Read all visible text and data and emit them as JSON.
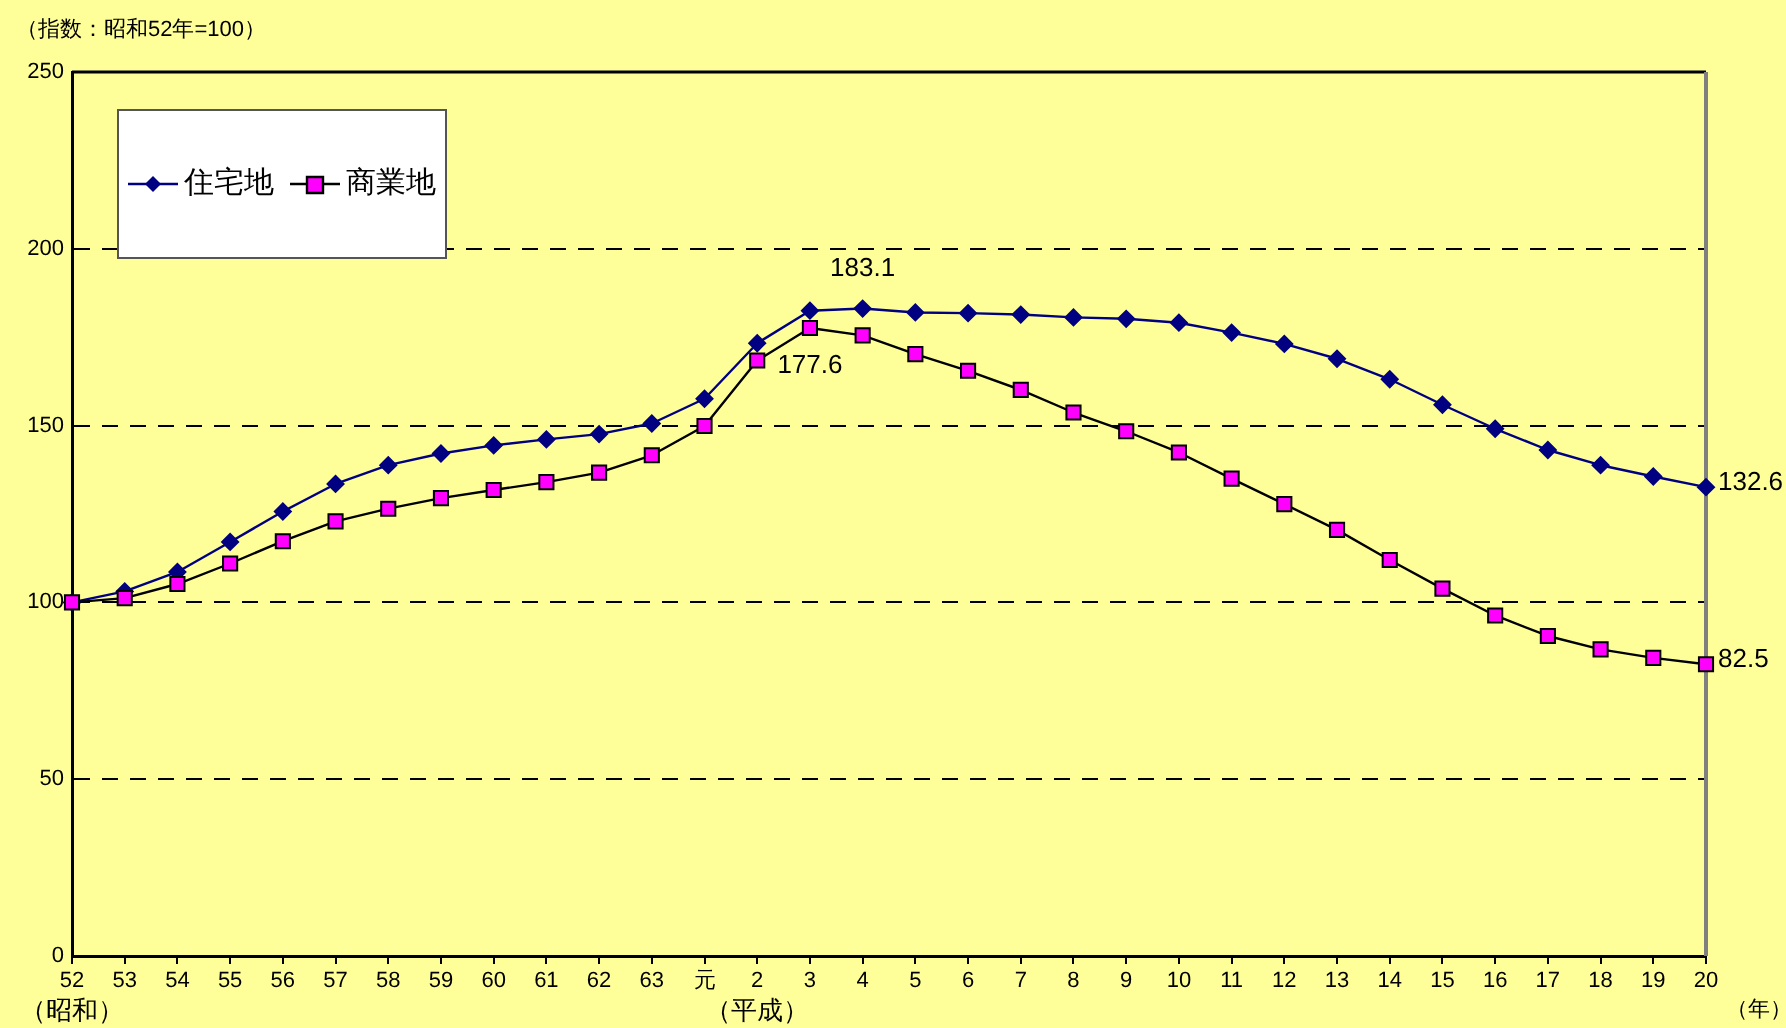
{
  "chart_data": {
    "type": "line",
    "ylabel": "（指数：昭和52年=100）",
    "xlabel": "（年）",
    "categories": [
      "52",
      "53",
      "54",
      "55",
      "56",
      "57",
      "58",
      "59",
      "60",
      "61",
      "62",
      "63",
      "元",
      "2",
      "3",
      "4",
      "5",
      "6",
      "7",
      "8",
      "9",
      "10",
      "11",
      "12",
      "13",
      "14",
      "15",
      "16",
      "17",
      "18",
      "19",
      "20"
    ],
    "series": [
      {
        "name": "住宅地",
        "color": "#000080",
        "marker": "diamond",
        "values": [
          100,
          103.1,
          108.6,
          117.1,
          125.7,
          133.5,
          138.8,
          142.1,
          144.4,
          146.1,
          147.6,
          150.6,
          157.6,
          173.3,
          182.5,
          183.1,
          182.0,
          181.8,
          181.4,
          180.6,
          180.2,
          179.1,
          176.3,
          173.1,
          168.9,
          163.1,
          155.9,
          149.1,
          143.1,
          138.8,
          135.6,
          132.6
        ],
        "value_labels": [
          null,
          null,
          null,
          null,
          null,
          null,
          null,
          null,
          null,
          null,
          null,
          null,
          null,
          null,
          null,
          "183.1",
          null,
          null,
          null,
          null,
          null,
          null,
          null,
          null,
          null,
          null,
          null,
          null,
          null,
          null,
          null,
          "132.6"
        ]
      },
      {
        "name": "商業地",
        "color": "#ff00ff",
        "marker": "square",
        "values": [
          100,
          101.2,
          105.2,
          111.0,
          117.3,
          122.9,
          126.5,
          129.5,
          131.8,
          134.0,
          136.7,
          141.6,
          149.9,
          168.4,
          177.6,
          175.5,
          170.2,
          165.5,
          160.1,
          153.7,
          148.4,
          142.4,
          135.0,
          127.8,
          120.5,
          112.0,
          103.9,
          96.3,
          90.5,
          86.7,
          84.3,
          82.5
        ],
        "value_labels": [
          null,
          null,
          null,
          null,
          null,
          null,
          null,
          null,
          null,
          null,
          null,
          null,
          null,
          null,
          "177.6",
          null,
          null,
          null,
          null,
          null,
          null,
          null,
          null,
          null,
          null,
          null,
          null,
          null,
          null,
          null,
          null,
          "82.5"
        ]
      }
    ],
    "ylim": [
      0,
      250
    ],
    "yticks": [
      0,
      50,
      100,
      150,
      200,
      250
    ],
    "grid": "y",
    "line_style": "solid",
    "legend": "top left",
    "annotations": [
      "（昭和）",
      "（平成）"
    ]
  }
}
